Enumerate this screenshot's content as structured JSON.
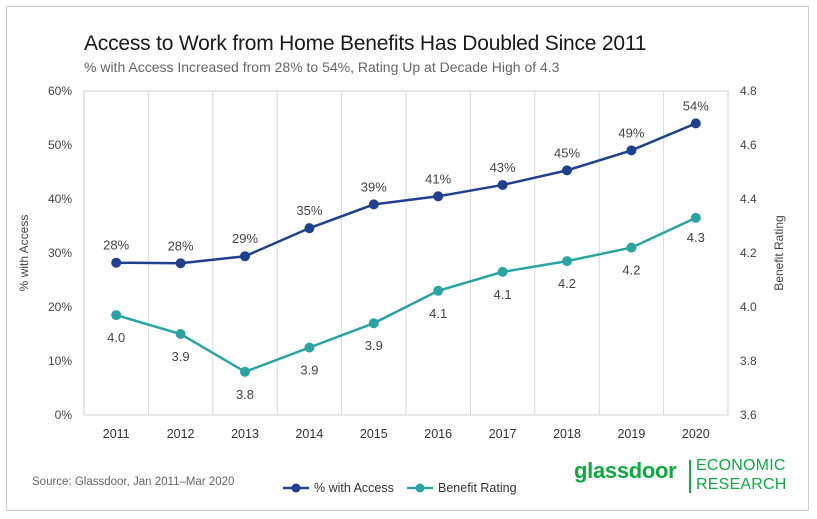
{
  "title": "Access to Work from Home Benefits Has Doubled Since 2011",
  "subtitle": "% with Access Increased from 28% to 54%, Rating Up at Decade High of 4.3",
  "source": "Source: Glassdoor, Jan 2011–Mar 2020",
  "brand": {
    "name": "glassdoor",
    "division_line1": "ECONOMIC",
    "division_line2": "RESEARCH",
    "color": "#0caa41"
  },
  "chart_data": {
    "type": "line",
    "categories": [
      "2011",
      "2012",
      "2013",
      "2014",
      "2015",
      "2016",
      "2017",
      "2018",
      "2019",
      "2020"
    ],
    "series": [
      {
        "name": "% with Access",
        "axis": "left",
        "color": "#1f3f8f",
        "values": [
          0.282,
          0.281,
          0.294,
          0.346,
          0.39,
          0.405,
          0.426,
          0.453,
          0.49,
          0.54
        ],
        "labels": [
          "28%",
          "28%",
          "29%",
          "35%",
          "39%",
          "41%",
          "43%",
          "45%",
          "49%",
          "54%"
        ]
      },
      {
        "name": "Benefit Rating",
        "axis": "right",
        "color": "#2aa3a3",
        "values": [
          3.97,
          3.9,
          3.76,
          3.85,
          3.94,
          4.06,
          4.13,
          4.17,
          4.22,
          4.33
        ],
        "labels": [
          "4.0",
          "3.9",
          "3.8",
          "3.9",
          "3.9",
          "4.1",
          "4.1",
          "4.2",
          "4.2",
          "4.3"
        ]
      }
    ],
    "y_left": {
      "label": "% with Access",
      "min": 0,
      "max": 0.6,
      "ticks": [
        "0%",
        "10%",
        "20%",
        "30%",
        "40%",
        "50%",
        "60%"
      ]
    },
    "y_right": {
      "label": "Benefit Rating",
      "min": 3.6,
      "max": 4.8,
      "ticks": [
        "3.6",
        "3.8",
        "4.0",
        "4.2",
        "4.4",
        "4.6",
        "4.8"
      ]
    },
    "grid": "vertical",
    "legend": "bottom-center"
  }
}
